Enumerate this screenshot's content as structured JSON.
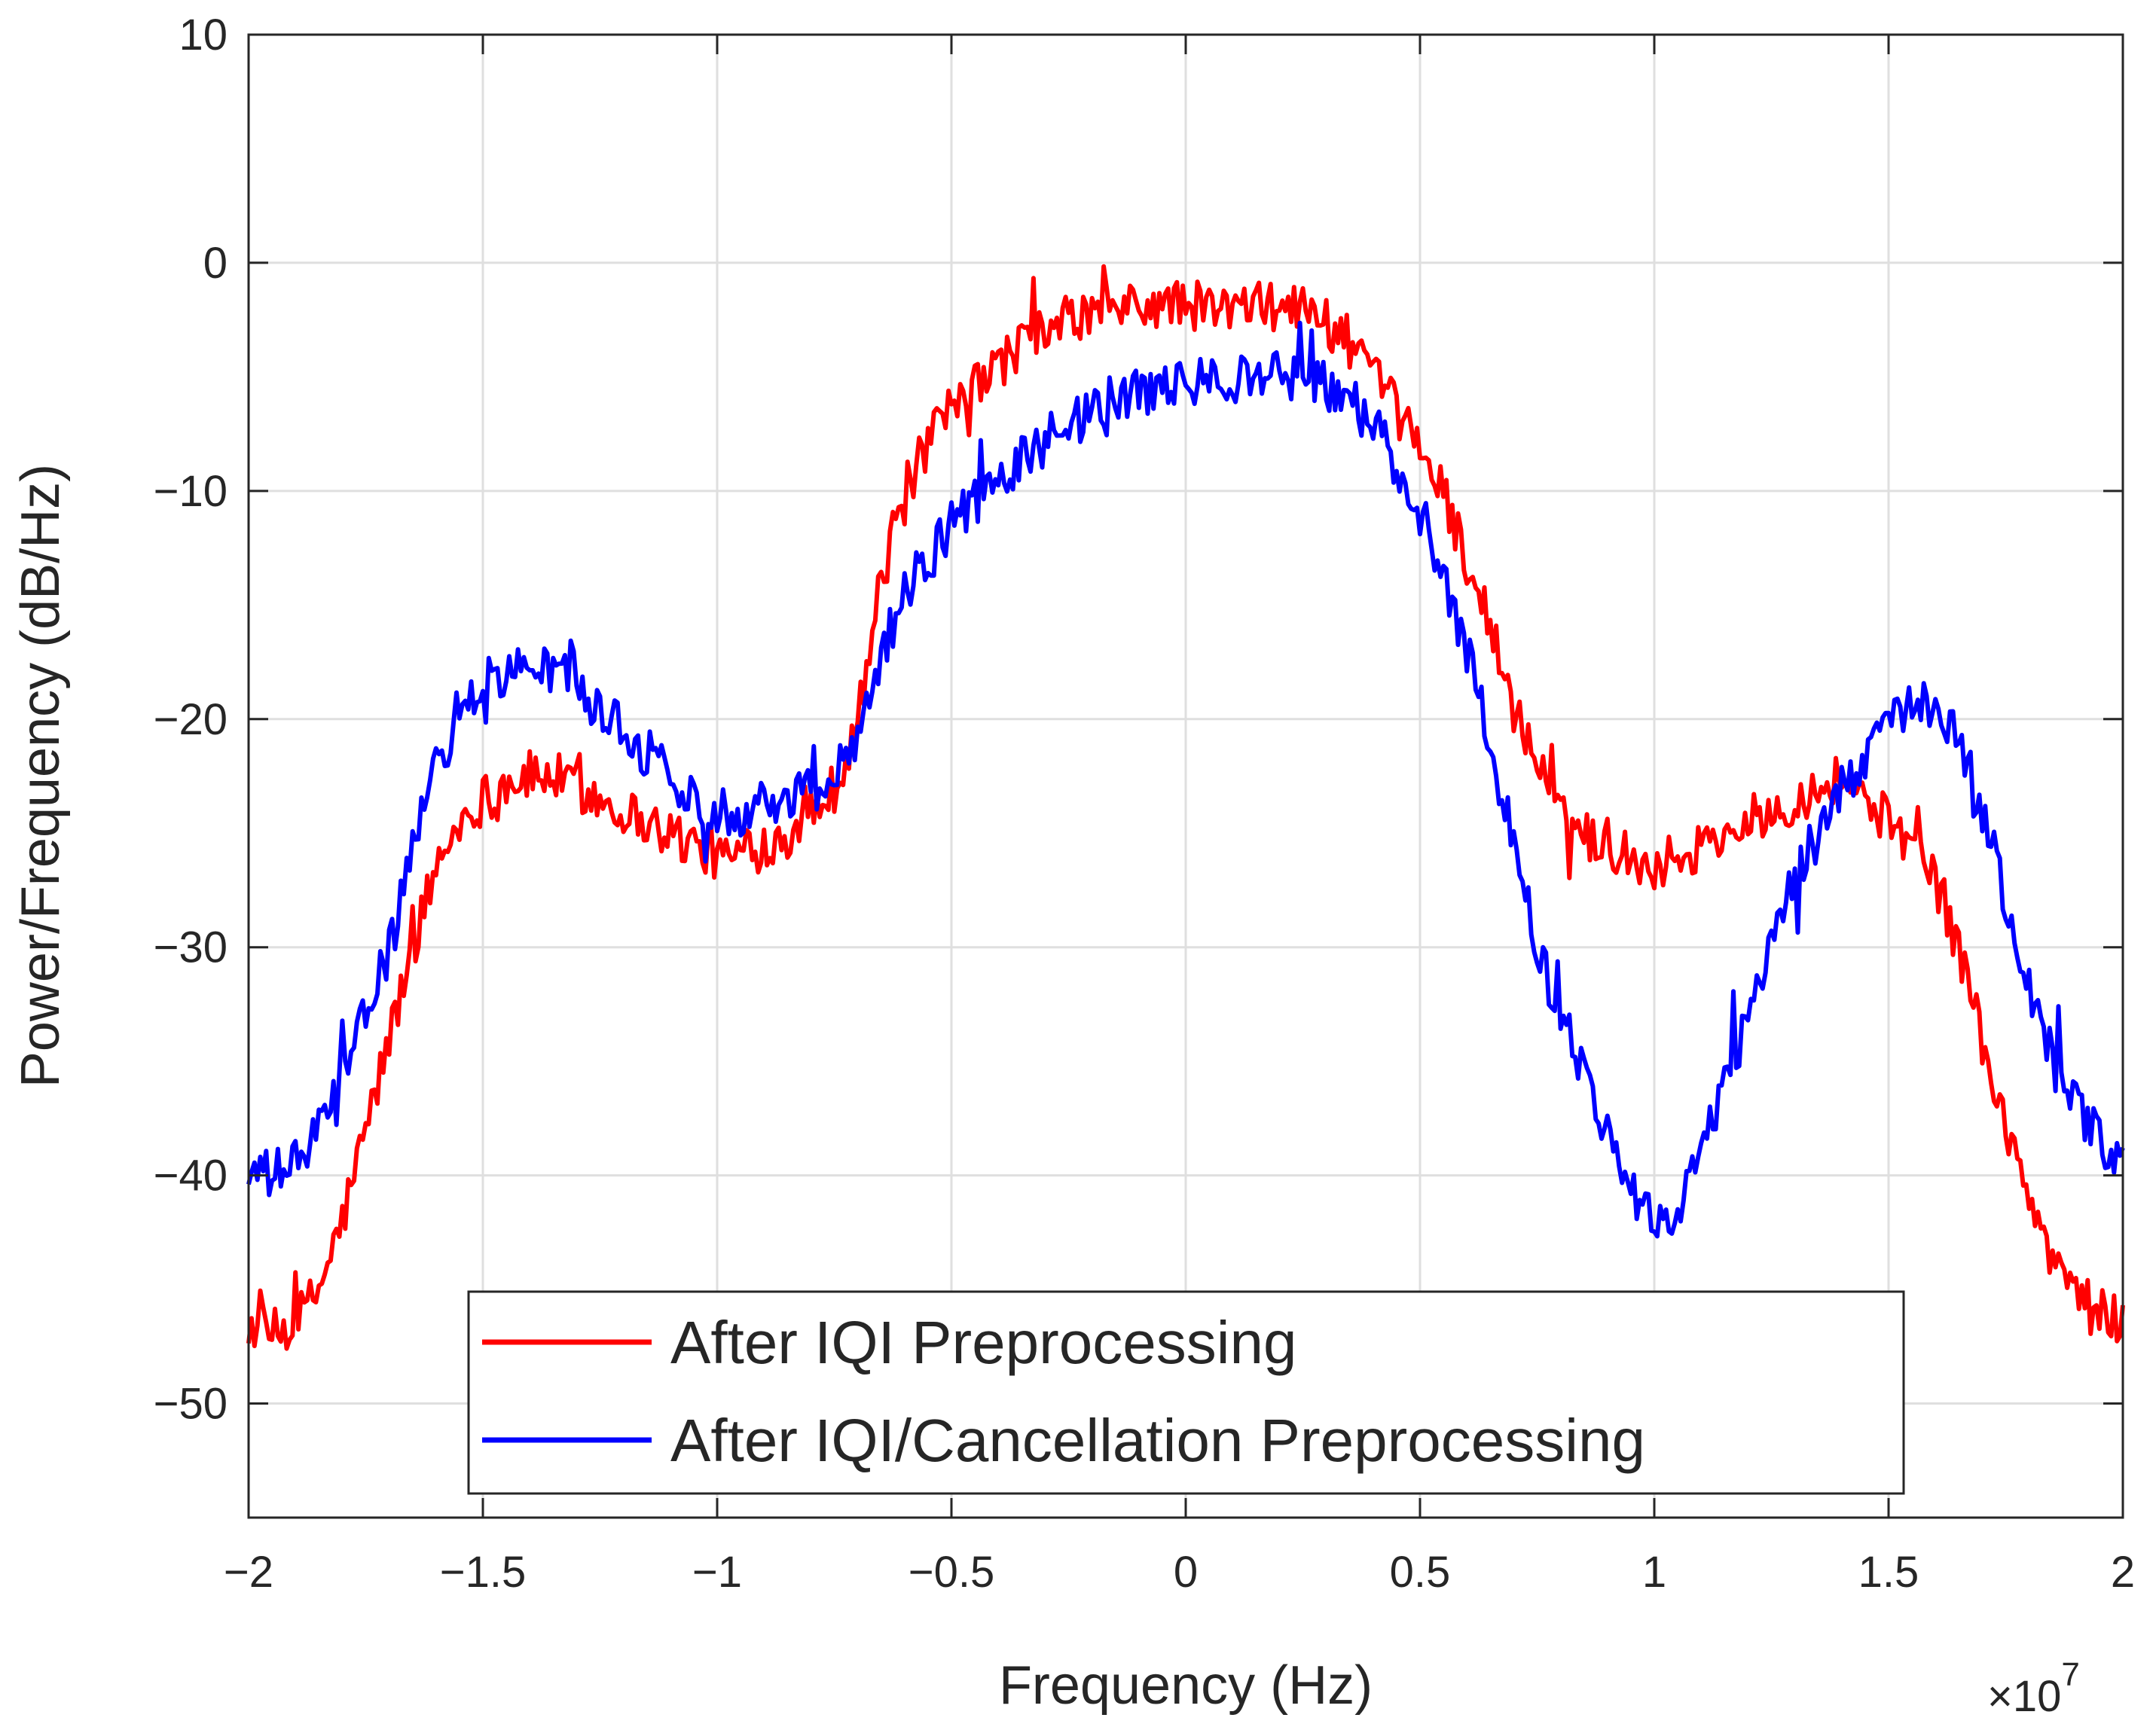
{
  "chart_data": {
    "type": "line",
    "title": "",
    "xlabel": "Frequency (Hz)",
    "ylabel": "Power/Frequency (dB/Hz)",
    "x_multiplier": "×10",
    "x_multiplier_exp": "7",
    "xlim": [
      -2,
      2
    ],
    "ylim": [
      -55,
      10
    ],
    "x_ticks": [
      -2,
      -1.5,
      -1,
      -0.5,
      0,
      0.5,
      1,
      1.5,
      2
    ],
    "x_tick_labels": [
      "−2",
      "−1.5",
      "−1",
      "−0.5",
      "0",
      "0.5",
      "1",
      "1.5",
      "2"
    ],
    "y_ticks": [
      10,
      0,
      -10,
      -20,
      -30,
      -40,
      -50
    ],
    "y_tick_labels": [
      "10",
      "0",
      "−10",
      "−20",
      "−30",
      "−40",
      "−50"
    ],
    "grid": true,
    "legend_position": "bottom-center",
    "noise_amplitude": 1.1,
    "x": [
      -2.0,
      -1.95,
      -1.9,
      -1.85,
      -1.8,
      -1.75,
      -1.7,
      -1.65,
      -1.6,
      -1.55,
      -1.5,
      -1.45,
      -1.4,
      -1.35,
      -1.3,
      -1.25,
      -1.2,
      -1.15,
      -1.1,
      -1.05,
      -1.0,
      -0.95,
      -0.9,
      -0.85,
      -0.8,
      -0.75,
      -0.7,
      -0.65,
      -0.6,
      -0.55,
      -0.5,
      -0.45,
      -0.4,
      -0.35,
      -0.3,
      -0.25,
      -0.2,
      -0.15,
      -0.1,
      -0.05,
      0.0,
      0.05,
      0.1,
      0.15,
      0.2,
      0.25,
      0.3,
      0.35,
      0.4,
      0.45,
      0.5,
      0.55,
      0.6,
      0.65,
      0.7,
      0.75,
      0.8,
      0.85,
      0.9,
      0.95,
      1.0,
      1.05,
      1.1,
      1.15,
      1.2,
      1.25,
      1.3,
      1.35,
      1.4,
      1.45,
      1.5,
      1.55,
      1.6,
      1.65,
      1.7,
      1.75,
      1.8,
      1.85,
      1.9,
      1.95,
      2.0
    ],
    "series": [
      {
        "name": "After IQI Preprocessing",
        "color": "#ff0000",
        "values": [
          -46.5,
          -47,
          -46.5,
          -45,
          -42,
          -38,
          -34,
          -30,
          -26.5,
          -24.5,
          -23.5,
          -22.8,
          -22.5,
          -22.5,
          -23,
          -23.5,
          -24,
          -24.5,
          -25,
          -25.5,
          -26,
          -26,
          -25.5,
          -25,
          -24,
          -23,
          -20,
          -14,
          -10,
          -8,
          -6.5,
          -5.5,
          -4.5,
          -3.5,
          -3,
          -2.5,
          -2.2,
          -2,
          -2,
          -1.8,
          -1.8,
          -2,
          -2,
          -2,
          -1.8,
          -2,
          -2.5,
          -3.5,
          -5,
          -6.5,
          -8,
          -10,
          -13,
          -16,
          -19.5,
          -22,
          -24,
          -25,
          -25.5,
          -26,
          -26.5,
          -26,
          -25.5,
          -25,
          -24.5,
          -24,
          -23.5,
          -23,
          -22.5,
          -23.5,
          -24.5,
          -25.5,
          -27,
          -30,
          -34,
          -38,
          -41,
          -43.5,
          -45,
          -46,
          -46.5
        ]
      },
      {
        "name": "After IQI/Cancellation Preprocessing",
        "color": "#0000ff",
        "values": [
          -40,
          -40,
          -39.5,
          -38,
          -36,
          -33,
          -30,
          -26,
          -22,
          -19.5,
          -18.5,
          -18,
          -17.8,
          -17.8,
          -18.5,
          -19.5,
          -20.5,
          -21.5,
          -22.5,
          -23.5,
          -24,
          -24,
          -23.5,
          -23.5,
          -23,
          -22.5,
          -20.5,
          -17,
          -14.5,
          -13,
          -11.5,
          -10.5,
          -9.5,
          -8.5,
          -7.8,
          -7,
          -6.5,
          -6,
          -5.8,
          -5.5,
          -5.3,
          -5.2,
          -5,
          -5,
          -5,
          -5,
          -5.3,
          -6,
          -7,
          -9,
          -11,
          -13.5,
          -17,
          -21,
          -25.5,
          -30,
          -33,
          -35.5,
          -38,
          -40.5,
          -42,
          -41.5,
          -39,
          -36,
          -33,
          -30,
          -27,
          -25,
          -23,
          -21.5,
          -20.5,
          -19.5,
          -19.5,
          -21,
          -24,
          -28,
          -32,
          -35,
          -37,
          -38.5,
          -39.5
        ]
      }
    ]
  }
}
